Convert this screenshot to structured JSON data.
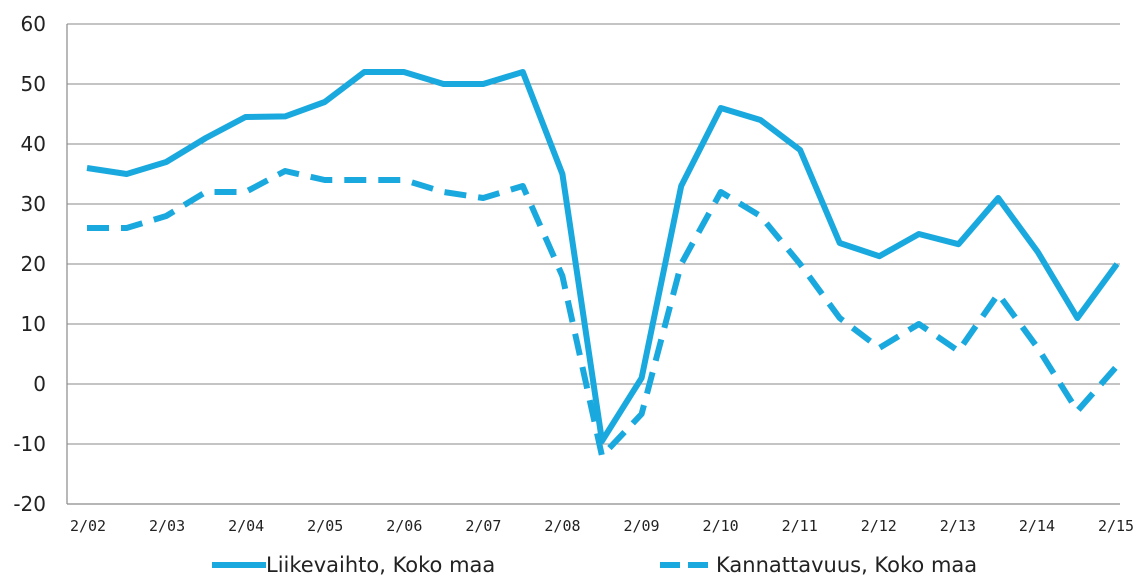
{
  "chart_data": {
    "type": "line",
    "title": "",
    "xlabel": "",
    "ylabel": "",
    "ylim": [
      -20,
      60
    ],
    "yticks": [
      60,
      50,
      40,
      30,
      20,
      10,
      0,
      -10,
      -20
    ],
    "x_tick_labels": [
      "2/02",
      "2/03",
      "2/04",
      "2/05",
      "2/06",
      "2/07",
      "2/08",
      "2/09",
      "2/10",
      "2/11",
      "2/12",
      "2/13",
      "2/14",
      "2/15"
    ],
    "grid": true,
    "legend_position": "bottom",
    "series": [
      {
        "name": "Liikevaihto, Koko maa",
        "style": "solid",
        "color": "#1aa9de",
        "values": [
          36,
          35,
          37,
          41,
          44.5,
          44.6,
          47,
          52,
          52,
          50,
          50,
          52,
          35,
          -9.5,
          1,
          33,
          46,
          44,
          39,
          23.5,
          21.3,
          25,
          23.3,
          31,
          22,
          11,
          20
        ]
      },
      {
        "name": "Kannattavuus, Koko maa",
        "style": "dashed",
        "color": "#1aa9de",
        "values": [
          26,
          26,
          28,
          32,
          32,
          35.5,
          34,
          34,
          34,
          32,
          31,
          33,
          18,
          -12,
          -5,
          20,
          32,
          28,
          20,
          11,
          6,
          10,
          5.5,
          15,
          6,
          -4.5,
          3
        ]
      }
    ]
  }
}
